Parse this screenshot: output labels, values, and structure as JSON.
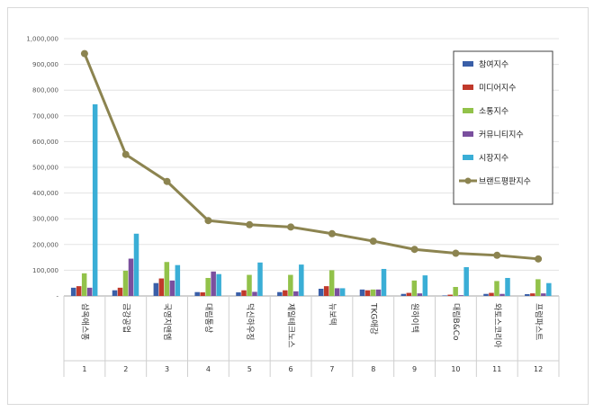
{
  "chart_data": {
    "type": "bar",
    "title": "",
    "xlabel": "",
    "ylabel": "",
    "ylim": [
      0,
      1000000
    ],
    "yticks": [
      0,
      100000,
      200000,
      300000,
      400000,
      500000,
      600000,
      700000,
      800000,
      900000,
      1000000
    ],
    "ytick_labels": [
      "-",
      "100,000",
      "200,000",
      "300,000",
      "400,000",
      "500,000",
      "600,000",
      "700,000",
      "800,000",
      "900,000",
      "1,000,000"
    ],
    "grid": true,
    "legend_position": "top-right",
    "categories": [
      "삼옥애스퐁",
      "금강공업",
      "국영지앤엠",
      "대림통상",
      "덕신하우징",
      "제일테크노스",
      "뉴보텍",
      "TKG애강",
      "원하이텍",
      "대림B&Co",
      "와토스코리아",
      "프럼파스트"
    ],
    "indices": [
      "1",
      "2",
      "3",
      "4",
      "5",
      "6",
      "7",
      "8",
      "9",
      "10",
      "11",
      "12"
    ],
    "series": [
      {
        "name": "참여지수",
        "kind": "bar",
        "color": "#3a5fa8",
        "values": [
          32000,
          22000,
          50000,
          15000,
          14000,
          15000,
          28000,
          25000,
          8000,
          2000,
          8000,
          7000
        ]
      },
      {
        "name": "미디어지수",
        "kind": "bar",
        "color": "#c0392b",
        "values": [
          38000,
          32000,
          68000,
          14000,
          22000,
          22000,
          38000,
          22000,
          12000,
          5000,
          12000,
          10000
        ]
      },
      {
        "name": "소통지수",
        "kind": "bar",
        "color": "#92c24a",
        "values": [
          88000,
          98000,
          132000,
          70000,
          82000,
          82000,
          100000,
          25000,
          60000,
          35000,
          58000,
          65000
        ]
      },
      {
        "name": "커뮤니티지수",
        "kind": "bar",
        "color": "#7a4f9e",
        "values": [
          32000,
          145000,
          60000,
          95000,
          16000,
          18000,
          30000,
          25000,
          10000,
          3000,
          8000,
          10000
        ]
      },
      {
        "name": "시장지수",
        "kind": "bar",
        "color": "#3aaed6",
        "values": [
          745000,
          242000,
          120000,
          85000,
          130000,
          122000,
          30000,
          105000,
          80000,
          112000,
          70000,
          50000
        ]
      },
      {
        "name": "브랜드평판지수",
        "kind": "line",
        "color": "#8c8450",
        "values": [
          942000,
          550000,
          445000,
          293000,
          277000,
          268000,
          242000,
          213000,
          181000,
          166000,
          158000,
          144000
        ]
      }
    ]
  }
}
